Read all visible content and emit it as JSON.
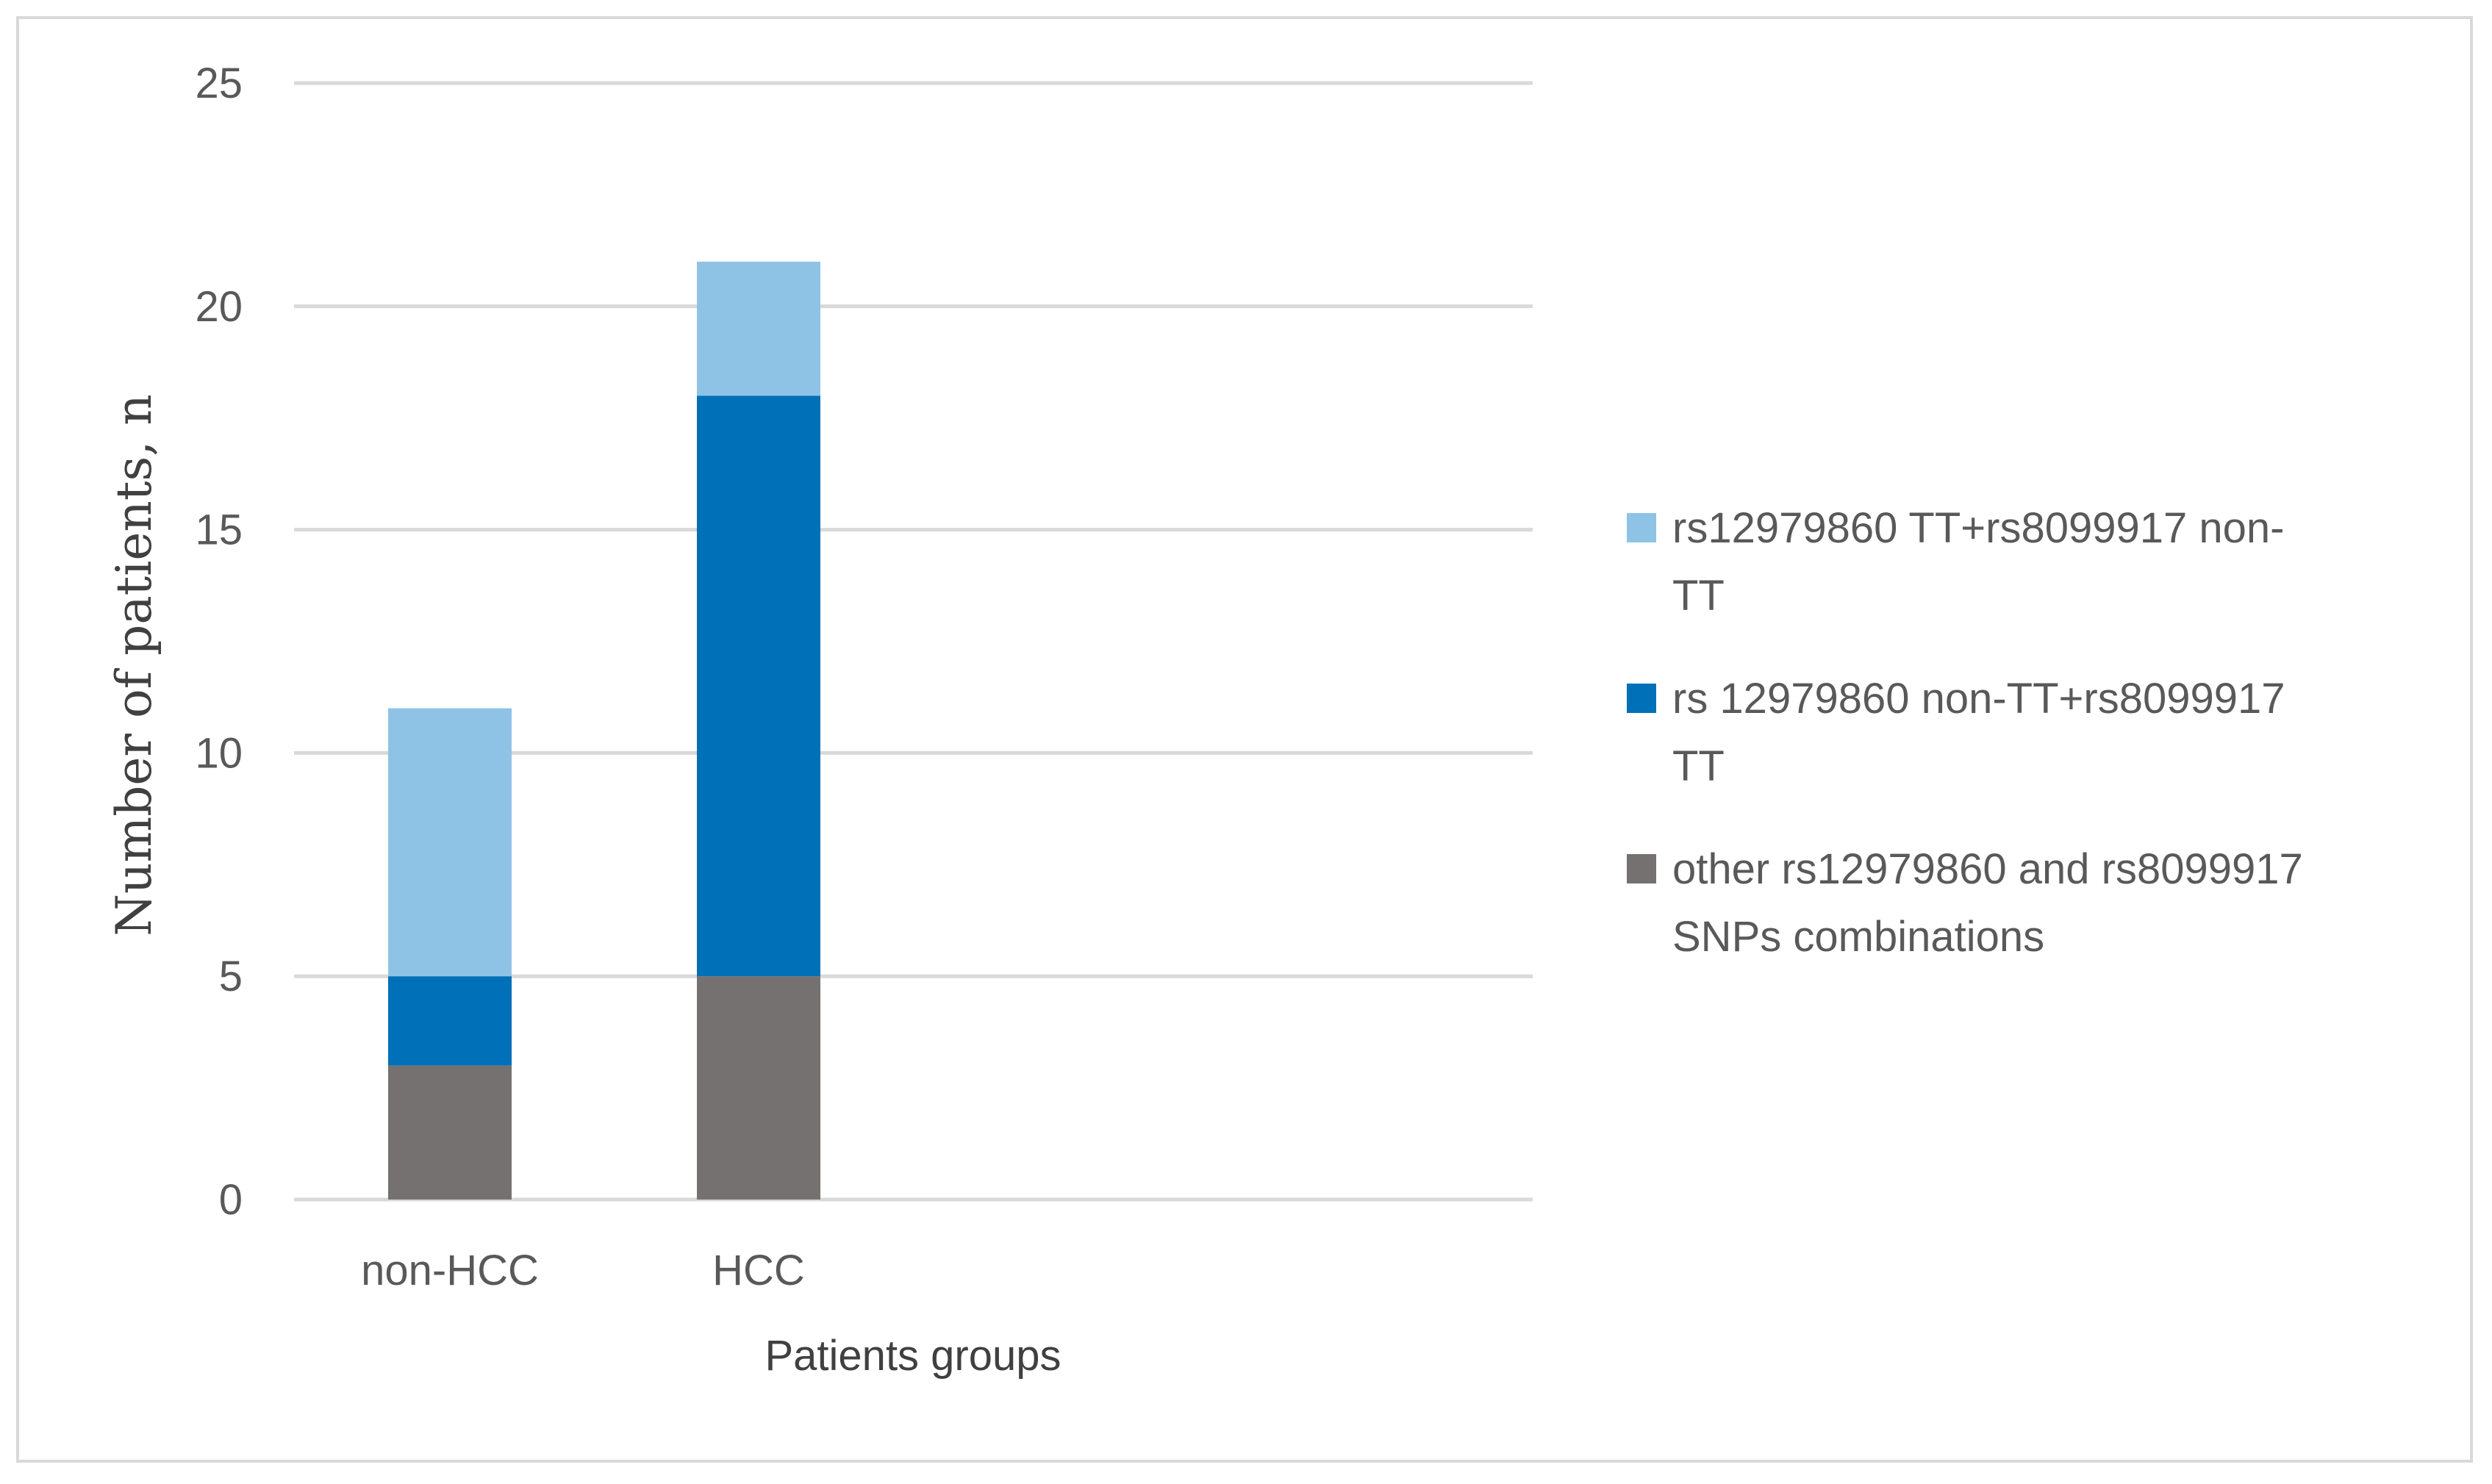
{
  "chart_data": {
    "type": "bar",
    "stacked": true,
    "categories": [
      "non-HCC",
      "HCC"
    ],
    "series": [
      {
        "name": "other rs12979860 and rs8099917 SNPs combinations",
        "values": [
          3,
          5
        ],
        "color": "#767171"
      },
      {
        "name": "rs 12979860 non-TT+rs8099917 TT",
        "values": [
          2,
          13
        ],
        "color": "#0070b8"
      },
      {
        "name": "rs12979860 TT+rs8099917 non-TT",
        "values": [
          6,
          3
        ],
        "color": "#8fc3e6"
      }
    ],
    "legend_order": [
      2,
      1,
      0
    ],
    "legend_position": "right",
    "legend_lines": [
      [
        "rs12979860 TT+rs8099917 non-",
        "TT"
      ],
      [
        "rs 12979860 non-TT+rs8099917",
        "TT"
      ],
      [
        "other rs12979860 and rs8099917",
        "SNPs combinations"
      ]
    ],
    "xlabel": "Patients groups",
    "ylabel": "Number of patients, n",
    "ylim": [
      0,
      25
    ],
    "yticks": [
      0,
      5,
      10,
      15,
      20,
      25
    ],
    "grid": true,
    "gridColor": "#d9d9d9"
  }
}
